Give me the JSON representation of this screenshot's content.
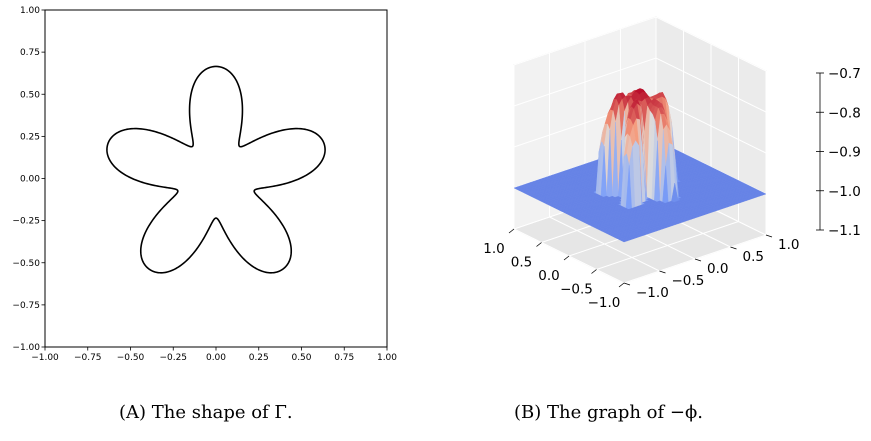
{
  "chart_data": [
    {
      "type": "line",
      "subplot": "A",
      "title": "",
      "xlabel": "",
      "ylabel": "",
      "xlim": [
        -1.0,
        1.0
      ],
      "ylim": [
        -1.0,
        1.0
      ],
      "xticks": [
        "−1.00",
        "−0.75",
        "−0.50",
        "−0.25",
        "0.00",
        "0.25",
        "0.50",
        "0.75",
        "1.00"
      ],
      "yticks": [
        "−1.00",
        "−0.75",
        "−0.50",
        "−0.25",
        "0.00",
        "0.25",
        "0.50",
        "0.75",
        "1.00"
      ],
      "series": [
        {
          "curve": "closed star-shaped curve Γ, five petals",
          "x": [
            0.0,
            0.1,
            0.17,
            0.26,
            0.45,
            0.64,
            0.67,
            0.52,
            0.3,
            0.22,
            0.38,
            0.45,
            0.36,
            0.25,
            0.0,
            -0.25,
            -0.36,
            -0.45,
            -0.38,
            -0.22,
            -0.3,
            -0.52,
            -0.67,
            -0.64,
            -0.45,
            -0.26,
            -0.17,
            -0.1,
            0.0
          ],
          "y": [
            0.7,
            0.65,
            0.45,
            0.13,
            0.15,
            0.26,
            0.15,
            0.06,
            -0.05,
            -0.18,
            -0.35,
            -0.55,
            -0.58,
            -0.53,
            -0.3,
            -0.53,
            -0.58,
            -0.55,
            -0.35,
            -0.18,
            -0.05,
            0.06,
            0.15,
            0.26,
            0.15,
            0.13,
            0.45,
            0.65,
            0.7
          ],
          "color": "#000000"
        }
      ],
      "grid": false
    },
    {
      "type": "surface",
      "subplot": "B",
      "title": "",
      "xlabel": "",
      "ylabel": "",
      "zlabel": "",
      "xlim": [
        -1.0,
        1.0
      ],
      "ylim": [
        -1.0,
        1.0
      ],
      "zlim": [
        -1.1,
        -0.7
      ],
      "xticks": [
        "−1.0",
        "−0.5",
        "0.0",
        "0.5",
        "1.0"
      ],
      "yticks": [
        "−1.0",
        "−0.5",
        "0.0",
        "0.5",
        "1.0"
      ],
      "zticks": [
        "−0.7",
        "−0.8",
        "−0.9",
        "−1.0",
        "−1.1"
      ],
      "base_value": -1.0,
      "peak_value": -0.75,
      "colormap": "coolwarm",
      "grid": true
    }
  ],
  "captions": {
    "a_label": "(A)",
    "a_text": "The shape of Γ.",
    "b_label": "(B)",
    "b_text": "The graph of −ϕ."
  }
}
